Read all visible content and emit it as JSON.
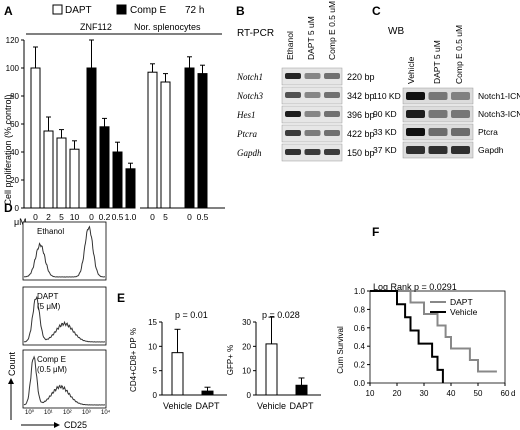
{
  "panels": {
    "A": {
      "label": "A",
      "legend": {
        "dapt": "DAPT",
        "compe": "Comp E",
        "time": "72 h"
      },
      "group1": "ZNF112",
      "group2": "Nor. splenocytes",
      "ylabel": "Cell proliferation (% control)",
      "um": "μM",
      "yticks": [
        "0",
        "20",
        "40",
        "60",
        "80",
        "100",
        "120"
      ]
    },
    "B": {
      "label": "B",
      "title": "RT-PCR",
      "lanes": [
        "Ethanol",
        "DAPT 5 uM",
        "Comp E 0.5 uM"
      ],
      "genes": [
        "Notch1",
        "Notch3",
        "Hes1",
        "Ptcra",
        "Gapdh"
      ],
      "sizes": [
        "220 bp",
        "342 bp",
        "396 bp",
        "422 bp",
        "150 bp"
      ]
    },
    "C": {
      "label": "C",
      "title": "WB",
      "lanes": [
        "Vehicle",
        "DAPT 5 uM",
        "Comp E 0.5 uM"
      ],
      "kd": [
        "110 KD",
        "90 KD",
        "33 KD",
        "37 KD"
      ],
      "proteins": [
        "Notch1-ICN",
        "Notch3-ICN",
        "Ptcra",
        "Gapdh"
      ]
    },
    "D": {
      "label": "D",
      "hist": [
        {
          "l1": "Ethanol",
          "l2": ""
        },
        {
          "l1": "DAPT",
          "l2": "(5 μM)"
        },
        {
          "l1": "Comp E",
          "l2": "(0.5 μM)"
        }
      ],
      "ylabel": "Count",
      "xlabel": "CD25",
      "xticks": [
        "10⁰",
        "10¹",
        "10²",
        "10³",
        "10⁴"
      ]
    },
    "E": {
      "label": "E",
      "p1": "p = 0.01",
      "p2": "p = 0.028",
      "ylabel1": "CD4+CD8+ DP %",
      "ylabel2": "GFP+ %",
      "yticks1": [
        "0",
        "5",
        "10",
        "15"
      ],
      "yticks2": [
        "0",
        "10",
        "20",
        "30"
      ],
      "cats": [
        "Vehicle",
        "DAPT"
      ]
    },
    "F": {
      "label": "F",
      "logrank": "Log Rank  p = 0.0291",
      "ylabel": "Cum Survival",
      "xunit": "d",
      "legend": [
        "DAPT",
        "Vehicle"
      ],
      "yticks": [
        "0.0",
        "0.2",
        "0.4",
        "0.6",
        "0.8",
        "1.0"
      ],
      "xticks": [
        "10",
        "20",
        "30",
        "40",
        "50",
        "60"
      ]
    }
  },
  "chart_data": [
    {
      "type": "bar",
      "id": "A-znf112",
      "title": "ZNF112",
      "ylabel": "Cell proliferation (% control)",
      "ylim": [
        0,
        120
      ],
      "series": [
        {
          "name": "DAPT",
          "categories": [
            "0",
            "2",
            "5",
            "10"
          ],
          "values": [
            100,
            55,
            50,
            42
          ],
          "errors": [
            15,
            10,
            6,
            6
          ]
        },
        {
          "name": "Comp E",
          "categories": [
            "0",
            "0.2",
            "0.5",
            "1.0"
          ],
          "values": [
            100,
            58,
            40,
            28
          ],
          "errors": [
            20,
            6,
            7,
            4
          ]
        }
      ]
    },
    {
      "type": "bar",
      "id": "A-splenocytes",
      "title": "Nor. splenocytes",
      "ylim": [
        0,
        120
      ],
      "series": [
        {
          "name": "DAPT",
          "categories": [
            "0",
            "5"
          ],
          "values": [
            97,
            90
          ],
          "errors": [
            6,
            6
          ]
        },
        {
          "name": "Comp E",
          "categories": [
            "0",
            "0.5"
          ],
          "values": [
            100,
            96
          ],
          "errors": [
            8,
            6
          ]
        }
      ]
    },
    {
      "type": "bar",
      "id": "E-dp",
      "ylabel": "CD4+CD8+ DP %",
      "ylim": [
        0,
        15
      ],
      "categories": [
        "Vehicle",
        "DAPT"
      ],
      "values": [
        8.7,
        0.8
      ],
      "errors": [
        4.8,
        0.8
      ],
      "colors": [
        "#ffffff",
        "#000000"
      ]
    },
    {
      "type": "bar",
      "id": "E-gfp",
      "ylabel": "GFP+ %",
      "ylim": [
        0,
        30
      ],
      "categories": [
        "Vehicle",
        "DAPT"
      ],
      "values": [
        21,
        4
      ],
      "errors": [
        11,
        3
      ],
      "colors": [
        "#ffffff",
        "#000000"
      ]
    },
    {
      "type": "line",
      "id": "F-survival",
      "ylabel": "Cum Survival",
      "xunit": "d",
      "xlim": [
        10,
        60
      ],
      "ylim": [
        0,
        1
      ],
      "series": [
        {
          "name": "DAPT",
          "color": "#888888",
          "points": [
            [
              10,
              1.0
            ],
            [
              25,
              1.0
            ],
            [
              25,
              0.875
            ],
            [
              30,
              0.875
            ],
            [
              30,
              0.75
            ],
            [
              35,
              0.75
            ],
            [
              35,
              0.625
            ],
            [
              38,
              0.625
            ],
            [
              38,
              0.5
            ],
            [
              40,
              0.5
            ],
            [
              40,
              0.375
            ],
            [
              47,
              0.375
            ],
            [
              47,
              0.25
            ],
            [
              50,
              0.25
            ],
            [
              50,
              0.125
            ],
            [
              57,
              0.125
            ]
          ]
        },
        {
          "name": "Vehicle",
          "color": "#000000",
          "points": [
            [
              10,
              1.0
            ],
            [
              20,
              1.0
            ],
            [
              20,
              0.857
            ],
            [
              23,
              0.857
            ],
            [
              23,
              0.714
            ],
            [
              25,
              0.714
            ],
            [
              25,
              0.571
            ],
            [
              28,
              0.571
            ],
            [
              28,
              0.428
            ],
            [
              33,
              0.428
            ],
            [
              33,
              0.285
            ],
            [
              35,
              0.285
            ],
            [
              35,
              0.142
            ],
            [
              37,
              0.142
            ],
            [
              37,
              0.0
            ]
          ]
        }
      ]
    }
  ]
}
